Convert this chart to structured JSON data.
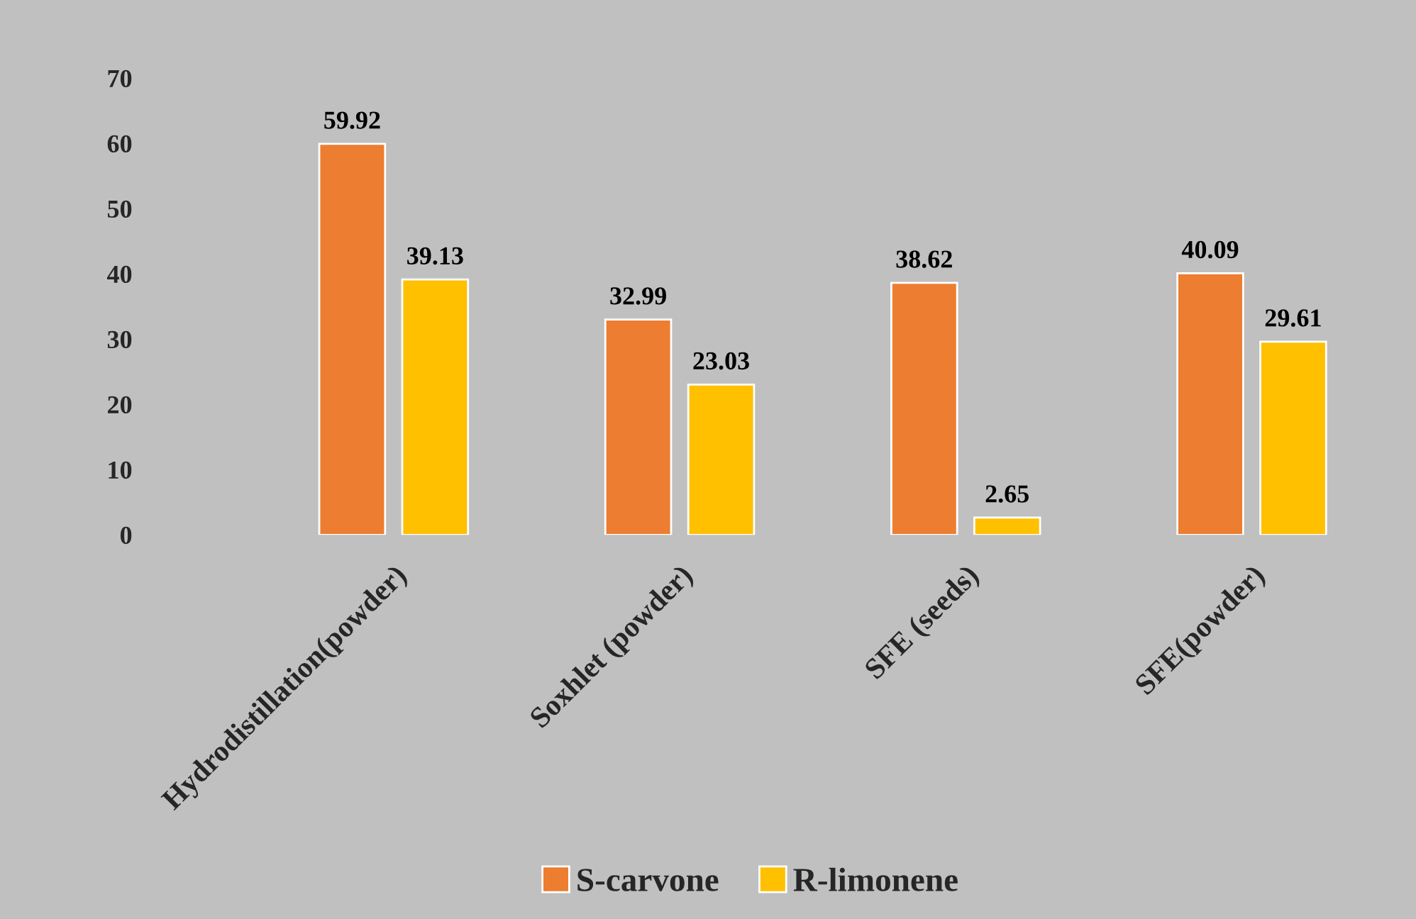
{
  "chart_data": {
    "type": "bar",
    "categories": [
      "Hydrodistillation(powder)",
      "Soxhlet (powder)",
      "SFE (seeds)",
      "SFE(powder)"
    ],
    "series": [
      {
        "name": "S-carvone",
        "color": "#ed7d31",
        "values": [
          59.92,
          32.99,
          38.62,
          40.09
        ]
      },
      {
        "name": "R-limonene",
        "color": "#ffc000",
        "values": [
          39.13,
          23.03,
          2.65,
          29.61
        ]
      }
    ],
    "ylim": [
      0,
      70
    ],
    "yticks": [
      0,
      10,
      20,
      30,
      40,
      50,
      60,
      70
    ],
    "data_labels": true,
    "grid": false,
    "legend": "bottom"
  }
}
